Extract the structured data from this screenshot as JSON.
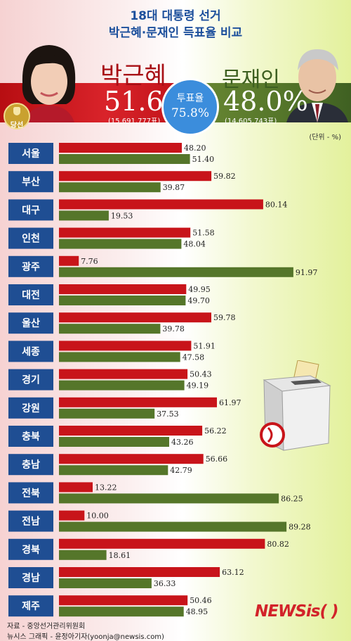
{
  "header": {
    "title_line1": "18대 대통령 선거",
    "title_line2": "박근혜·문재인 득표율 비교"
  },
  "candidates": {
    "park": {
      "name": "박근혜",
      "percent": "51.6%",
      "votes": "(15,691,777표)",
      "badge": "당선"
    },
    "moon": {
      "name": "문재인",
      "percent": "48.0%",
      "votes": "(14,605,743표)"
    }
  },
  "turnout": {
    "label": "투표율",
    "value": "75.8%"
  },
  "unit": "(단위 - %)",
  "colors": {
    "park": "#c8141a",
    "moon": "#55762a",
    "label_box": "#1f4e93"
  },
  "chart_data": {
    "type": "bar",
    "orientation": "horizontal",
    "xlim": [
      0,
      100
    ],
    "categories": [
      "서울",
      "부산",
      "대구",
      "인천",
      "광주",
      "대전",
      "울산",
      "세종",
      "경기",
      "강원",
      "충북",
      "충남",
      "전북",
      "전남",
      "경북",
      "경남",
      "제주"
    ],
    "series": [
      {
        "name": "박근혜",
        "color": "#c8141a",
        "values": [
          48.2,
          59.82,
          80.14,
          51.58,
          7.76,
          49.95,
          59.78,
          51.91,
          50.43,
          61.97,
          56.22,
          56.66,
          13.22,
          10.0,
          80.82,
          63.12,
          50.46
        ],
        "labels": [
          "48.20",
          "59.82",
          "80.14",
          "51.58",
          "7.76",
          "49.95",
          "59.78",
          "51.91",
          "50.43",
          "61.97",
          "56.22",
          "56.66",
          "13.22",
          "10.00",
          "80.82",
          "63.12",
          "50.46"
        ]
      },
      {
        "name": "문재인",
        "color": "#55762a",
        "values": [
          51.4,
          39.87,
          19.53,
          48.04,
          91.97,
          49.7,
          39.78,
          47.58,
          49.19,
          37.53,
          43.26,
          42.79,
          86.25,
          89.28,
          18.61,
          36.33,
          48.95
        ],
        "labels": [
          "51.40",
          "39.87",
          "19.53",
          "48.04",
          "91.97",
          "49.70",
          "39.78",
          "47.58",
          "49.19",
          "37.53",
          "43.26",
          "42.79",
          "86.25",
          "89.28",
          "18.61",
          "36.33",
          "48.95"
        ]
      }
    ]
  },
  "footer": {
    "source": "자료 - 중앙선거관리위원회",
    "credit": "뉴시스 그래픽 - 윤정아기자(yoonja@newsis.com)",
    "logo_main": "NEWS",
    "logo_is": "is",
    "logo_paren": "( )"
  }
}
